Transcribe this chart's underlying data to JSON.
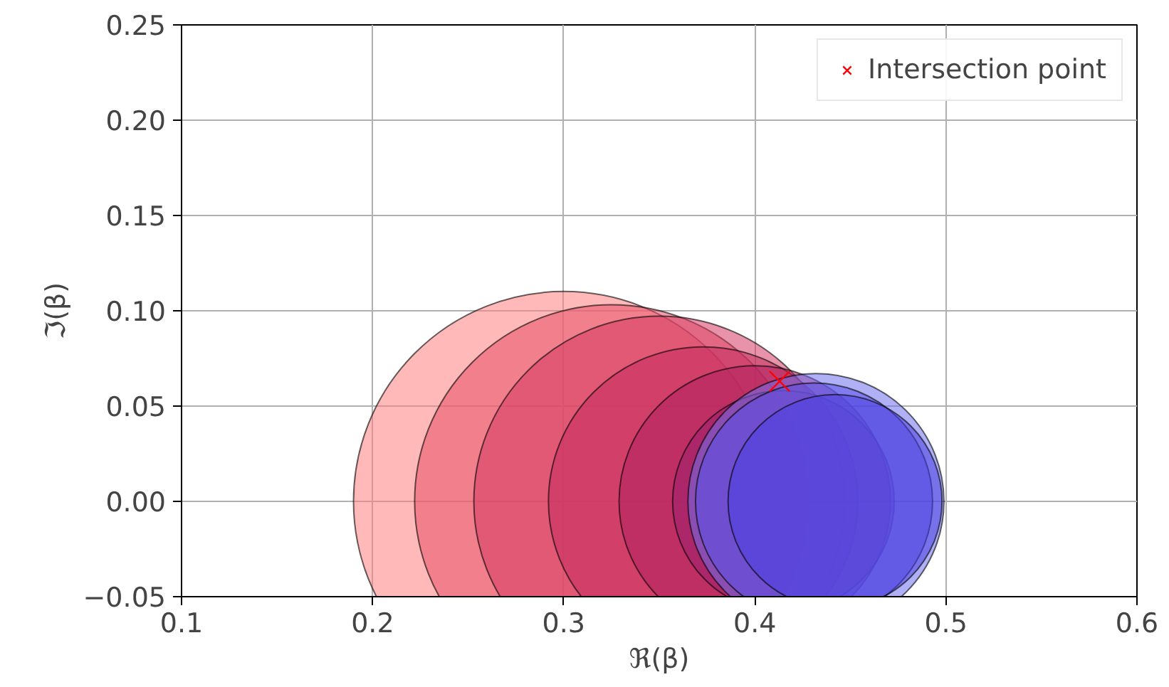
{
  "chart_data": {
    "type": "bubble",
    "xlabel": "ℜ(β)",
    "ylabel": "ℑ(β)",
    "xlim": [
      0.1,
      0.6
    ],
    "ylim": [
      -0.05,
      0.25
    ],
    "xticks": [
      0.1,
      0.2,
      0.3,
      0.4,
      0.5,
      0.6
    ],
    "yticks": [
      {
        "value": -0.05,
        "label": "−0.05"
      },
      {
        "value": 0,
        "label": "0.00"
      },
      {
        "value": 0.05,
        "label": "0.05"
      },
      {
        "value": 0.1,
        "label": "0.10"
      },
      {
        "value": 0.15,
        "label": "0.15"
      },
      {
        "value": 0.2,
        "label": "0.20"
      },
      {
        "value": 0.25,
        "label": "0.25"
      }
    ],
    "grid": true,
    "legend": "top right",
    "series": [
      {
        "x": [
          0.3,
          0.325,
          0.35,
          0.373,
          0.4,
          0.415,
          0.432,
          0.431,
          0.442
        ],
        "values": [
          0,
          0,
          0,
          0,
          0,
          0,
          0,
          0,
          0
        ],
        "sizes": [
          1,
          0.877,
          0.778,
          0.542,
          0.417,
          0.278,
          0.371,
          0.318,
          0.259
        ],
        "colors": [
          "#ff8080",
          "#e85068",
          "#d63a62",
          "#c42c5e",
          "#b0205e",
          "#9a2070",
          "#7070f0",
          "#5a50e8",
          "#4a40e0"
        ]
      },
      {
        "type": "scatter",
        "name": "Intersection point",
        "color": "#ff0000",
        "marker": "cross",
        "x": [
          0.413
        ],
        "values": [
          0.063
        ]
      }
    ]
  }
}
